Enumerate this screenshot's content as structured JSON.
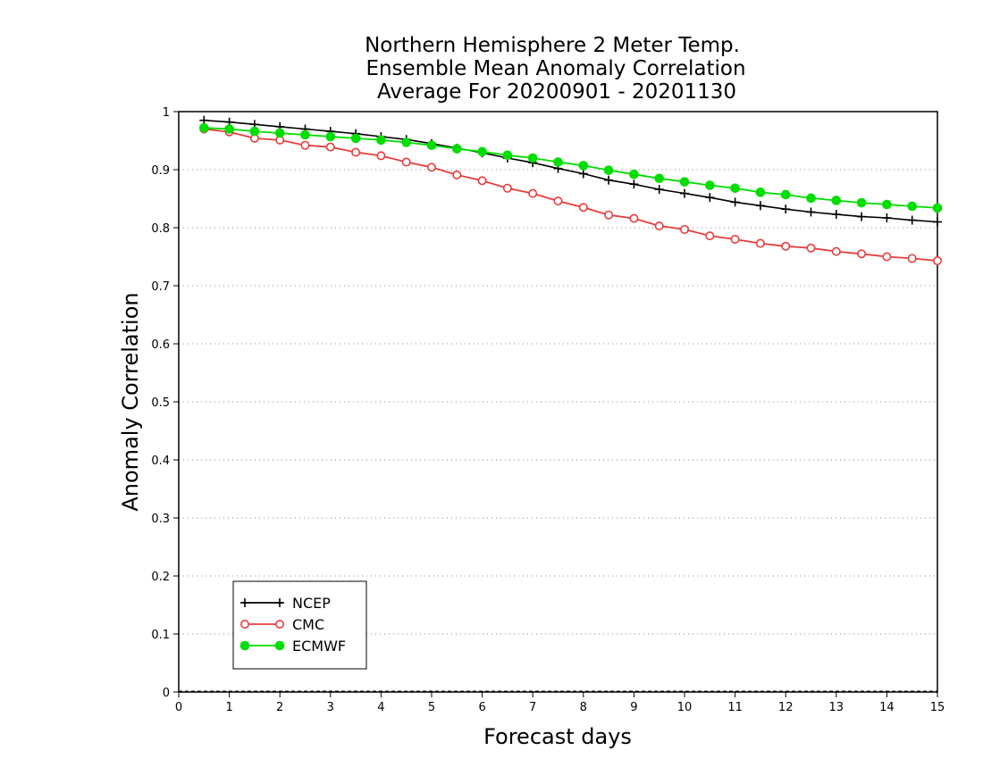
{
  "chart_data": {
    "type": "line",
    "title": [
      "Northern Hemisphere 2 Meter Temp.",
      "Ensemble Mean Anomaly Correlation",
      "Average For 20200901 - 20201130"
    ],
    "xlabel": "Forecast days",
    "ylabel": "Anomaly Correlation",
    "xlim": [
      0,
      15
    ],
    "ylim": [
      0,
      1
    ],
    "xticks": [
      0,
      1,
      2,
      3,
      4,
      5,
      6,
      7,
      8,
      9,
      10,
      11,
      12,
      13,
      14,
      15
    ],
    "yticks": [
      0,
      0.1,
      0.2,
      0.3,
      0.4,
      0.5,
      0.6,
      0.7,
      0.8,
      0.9,
      1
    ],
    "ytick_labels": [
      "0",
      "0.1",
      "0.2",
      "0.3",
      "0.4",
      "0.5",
      "0.6",
      "0.7",
      "0.8",
      "0.9",
      "1"
    ],
    "grid": "horizontal-dotted",
    "legend_position": "bottom-left",
    "x": [
      0.5,
      1.0,
      1.5,
      2.0,
      2.5,
      3.0,
      3.5,
      4.0,
      4.5,
      5.0,
      5.5,
      6.0,
      6.5,
      7.0,
      7.5,
      8.0,
      8.5,
      9.0,
      9.5,
      10.0,
      10.5,
      11.0,
      11.5,
      12.0,
      12.5,
      13.0,
      13.5,
      14.0,
      14.5,
      15.0
    ],
    "series": [
      {
        "name": "NCEP",
        "color": "#000000",
        "marker": "plus",
        "values": [
          0.985,
          0.982,
          0.978,
          0.974,
          0.97,
          0.966,
          0.962,
          0.957,
          0.952,
          0.945,
          0.937,
          0.929,
          0.92,
          0.912,
          0.902,
          0.893,
          0.882,
          0.875,
          0.866,
          0.859,
          0.852,
          0.844,
          0.838,
          0.832,
          0.827,
          0.823,
          0.819,
          0.817,
          0.813,
          0.81
        ]
      },
      {
        "name": "CMC",
        "color": "#e83b3b",
        "marker": "open-circle",
        "values": [
          0.97,
          0.965,
          0.954,
          0.951,
          0.942,
          0.939,
          0.93,
          0.924,
          0.913,
          0.904,
          0.891,
          0.881,
          0.868,
          0.859,
          0.846,
          0.835,
          0.822,
          0.816,
          0.803,
          0.797,
          0.786,
          0.78,
          0.773,
          0.768,
          0.765,
          0.759,
          0.755,
          0.75,
          0.747,
          0.743
        ]
      },
      {
        "name": "ECMWF",
        "color": "#00dd00",
        "marker": "filled-circle",
        "values": [
          0.972,
          0.97,
          0.966,
          0.963,
          0.96,
          0.957,
          0.954,
          0.951,
          0.947,
          0.942,
          0.936,
          0.931,
          0.925,
          0.92,
          0.913,
          0.907,
          0.899,
          0.892,
          0.885,
          0.879,
          0.873,
          0.868,
          0.861,
          0.857,
          0.851,
          0.847,
          0.843,
          0.84,
          0.837,
          0.834
        ]
      }
    ]
  }
}
